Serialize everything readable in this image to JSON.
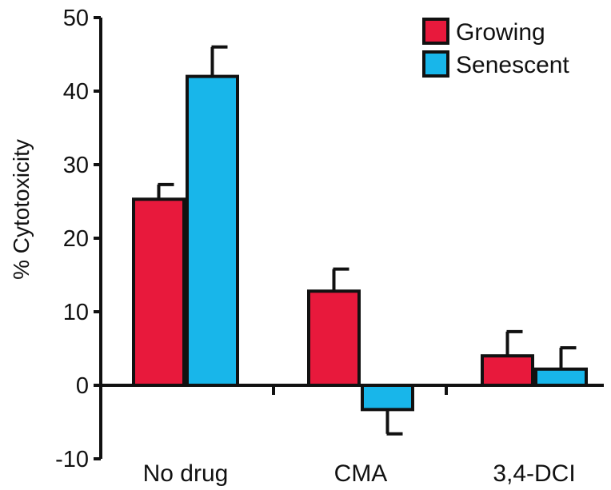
{
  "chart_data": {
    "type": "bar",
    "categories": [
      "No drug",
      "CMA",
      "3,4-DCI"
    ],
    "series": [
      {
        "name": "Growing",
        "color": "#e8193c",
        "values": [
          25.3,
          12.8,
          4.0
        ],
        "errors": [
          2.0,
          3.0,
          3.3
        ]
      },
      {
        "name": "Senescent",
        "color": "#18b6ea",
        "values": [
          42.0,
          -3.3,
          2.2
        ],
        "errors": [
          4.0,
          3.3,
          2.9
        ]
      }
    ],
    "ylabel": "% Cytotoxicity",
    "xlabel": "",
    "ylim": [
      -10,
      50
    ],
    "yticks": [
      -10,
      0,
      10,
      20,
      30,
      40,
      50
    ],
    "legend_position": "top-right",
    "grid": false
  }
}
